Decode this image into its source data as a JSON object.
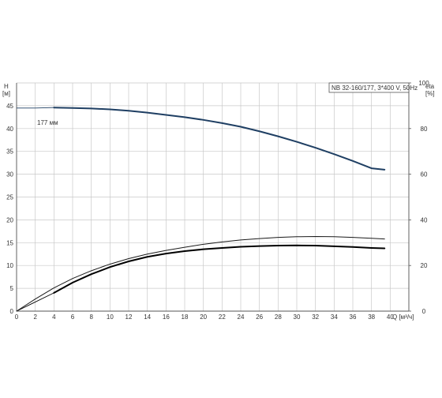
{
  "chart_data": {
    "type": "line",
    "title": "NB 32-160/177, 3*400 V, 50Hz",
    "xlabel": "Q [м³/ч]",
    "x_axis_end_label": "Q [м³/ч]",
    "ylabel_left": {
      "name": "H",
      "unit": "[м]"
    },
    "ylabel_right": {
      "name": "eta",
      "unit": "[%]"
    },
    "xlim": [
      0,
      42
    ],
    "ylim_left": [
      0,
      50
    ],
    "ylim_right": [
      0,
      100
    ],
    "x_ticks": [
      "0",
      "2",
      "4",
      "6",
      "8",
      "10",
      "12",
      "14",
      "16",
      "18",
      "20",
      "22",
      "24",
      "26",
      "28",
      "30",
      "32",
      "34",
      "36",
      "38",
      "40"
    ],
    "y_left_ticks": [
      "0",
      "5",
      "10",
      "15",
      "20",
      "25",
      "30",
      "35",
      "40",
      "45"
    ],
    "y_right_ticks": [
      "0",
      "20",
      "40",
      "60",
      "80",
      "100"
    ],
    "grid": true,
    "annotation": "177 мм",
    "series": [
      {
        "color": "#1f3f63",
        "axis": "left",
        "thin_x": [
          0,
          2,
          4
        ],
        "thin_y": [
          44.5,
          44.5,
          44.6
        ],
        "x": [
          4,
          6,
          8,
          10,
          12,
          14,
          16,
          18,
          20,
          22,
          24,
          26,
          28,
          30,
          32,
          34,
          36,
          38,
          39.4
        ],
        "y": [
          44.6,
          44.5,
          44.4,
          44.2,
          43.9,
          43.5,
          43.0,
          42.5,
          41.9,
          41.2,
          40.4,
          39.4,
          38.3,
          37.1,
          35.8,
          34.4,
          32.9,
          31.3,
          31.0
        ]
      },
      {
        "color": "#000000",
        "axis": "right",
        "thin_x": [
          0,
          2,
          4
        ],
        "thin_y": [
          0,
          4,
          8
        ],
        "x": [
          4,
          6,
          8,
          10,
          12,
          14,
          16,
          18,
          20,
          22,
          24,
          26,
          28,
          30,
          32,
          34,
          36,
          38,
          39.4
        ],
        "y": [
          8,
          12.5,
          16.2,
          19.3,
          21.8,
          23.8,
          25.2,
          26.3,
          27.1,
          27.7,
          28.2,
          28.5,
          28.7,
          28.8,
          28.7,
          28.4,
          28.1,
          27.7,
          27.5
        ]
      },
      {
        "color": "#1a1a1a",
        "axis": "right",
        "thin": true,
        "x": [
          0,
          2,
          4,
          6,
          8,
          10,
          12,
          14,
          16,
          18,
          20,
          22,
          24,
          26,
          28,
          30,
          32,
          34,
          36,
          38,
          39.4
        ],
        "y": [
          0,
          5.3,
          10.2,
          14.3,
          17.7,
          20.6,
          23.0,
          25.0,
          26.6,
          28.0,
          29.3,
          30.3,
          31.2,
          31.8,
          32.3,
          32.6,
          32.7,
          32.6,
          32.3,
          31.9,
          31.6
        ]
      }
    ]
  }
}
